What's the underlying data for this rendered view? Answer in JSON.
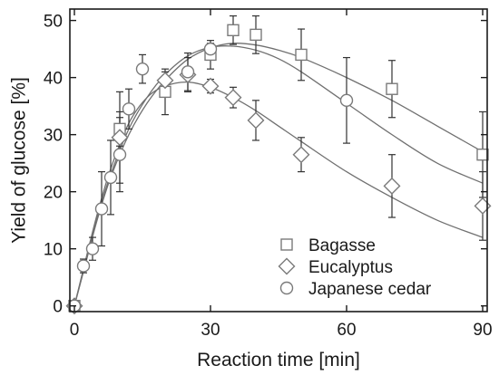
{
  "chart_data": {
    "type": "scatter",
    "title": "",
    "xlabel": "Reaction time [min]",
    "ylabel": "Yield of glucose [%]",
    "xlim": [
      -1,
      91
    ],
    "ylim": [
      -1,
      52
    ],
    "xticks": [
      0,
      30,
      60,
      90
    ],
    "yticks": [
      0,
      10,
      20,
      30,
      40,
      50
    ],
    "grid": false,
    "legend_position": "bottom-center",
    "colors": {
      "marker": "#7a7a7a",
      "fit": "#707070",
      "axis": "#1a1a1a"
    },
    "series": [
      {
        "name": "Bagasse",
        "marker": "square",
        "points": [
          {
            "x": 0,
            "y": 0,
            "err": 0.5
          },
          {
            "x": 10,
            "y": 31,
            "err": 3
          },
          {
            "x": 20,
            "y": 37.5,
            "err": 4
          },
          {
            "x": 30,
            "y": 44,
            "err": 2.5
          },
          {
            "x": 35,
            "y": 48.3,
            "err": 2.5
          },
          {
            "x": 40,
            "y": 47.5,
            "err": 3.3
          },
          {
            "x": 50,
            "y": 44,
            "err": 4.5
          },
          {
            "x": 70,
            "y": 38,
            "err": 5
          },
          {
            "x": 90,
            "y": 26.5,
            "err": 7.5
          }
        ],
        "fit": [
          [
            0,
            0
          ],
          [
            2,
            6
          ],
          [
            5,
            15
          ],
          [
            8,
            22.5
          ],
          [
            12,
            30
          ],
          [
            16,
            35.5
          ],
          [
            20,
            39.5
          ],
          [
            25,
            43.2
          ],
          [
            30,
            45.2
          ],
          [
            35,
            46
          ],
          [
            40,
            45.7
          ],
          [
            45,
            44.8
          ],
          [
            50,
            43.5
          ],
          [
            60,
            40
          ],
          [
            70,
            36
          ],
          [
            80,
            31.5
          ],
          [
            90,
            27
          ]
        ]
      },
      {
        "name": "Eucalyptus",
        "marker": "diamond",
        "points": [
          {
            "x": 0,
            "y": 0,
            "err": 0.5
          },
          {
            "x": 10,
            "y": 29.5,
            "err": 8
          },
          {
            "x": 20,
            "y": 39.5,
            "err": 1.5
          },
          {
            "x": 25,
            "y": 40.5,
            "err": 3
          },
          {
            "x": 30,
            "y": 38.5,
            "err": 1.2
          },
          {
            "x": 35,
            "y": 36.5,
            "err": 1.8
          },
          {
            "x": 40,
            "y": 32.5,
            "err": 3.5
          },
          {
            "x": 50,
            "y": 26.5,
            "err": 3
          },
          {
            "x": 70,
            "y": 21,
            "err": 5.5
          },
          {
            "x": 90,
            "y": 17.5,
            "err": 6
          }
        ],
        "fit": [
          [
            0,
            0
          ],
          [
            2,
            6.5
          ],
          [
            5,
            16
          ],
          [
            8,
            24
          ],
          [
            12,
            32
          ],
          [
            16,
            36.5
          ],
          [
            20,
            38.5
          ],
          [
            25,
            39.2
          ],
          [
            30,
            38.3
          ],
          [
            35,
            36.5
          ],
          [
            40,
            34.2
          ],
          [
            45,
            31.5
          ],
          [
            50,
            28.8
          ],
          [
            60,
            23.5
          ],
          [
            70,
            19
          ],
          [
            80,
            15
          ],
          [
            90,
            12
          ]
        ]
      },
      {
        "name": "Japanese cedar",
        "marker": "circle",
        "points": [
          {
            "x": 0,
            "y": 0,
            "err": 0.5
          },
          {
            "x": 2,
            "y": 7,
            "err": 1.2
          },
          {
            "x": 4,
            "y": 10,
            "err": 2
          },
          {
            "x": 6,
            "y": 17,
            "err": 6.5
          },
          {
            "x": 8,
            "y": 22.5,
            "err": 6.5
          },
          {
            "x": 10,
            "y": 26.5,
            "err": 6.5
          },
          {
            "x": 12,
            "y": 34.5,
            "err": 3.5
          },
          {
            "x": 15,
            "y": 41.5,
            "err": 2.5
          },
          {
            "x": 25,
            "y": 41,
            "err": 3.3
          },
          {
            "x": 30,
            "y": 45,
            "err": 1
          },
          {
            "x": 60,
            "y": 36,
            "err": 7.5
          }
        ],
        "fit": [
          [
            0,
            0
          ],
          [
            2,
            6.2
          ],
          [
            5,
            15.5
          ],
          [
            8,
            23
          ],
          [
            12,
            31
          ],
          [
            16,
            36.5
          ],
          [
            20,
            40.5
          ],
          [
            25,
            43.8
          ],
          [
            30,
            45.3
          ],
          [
            35,
            45.5
          ],
          [
            40,
            44.8
          ],
          [
            45,
            43.3
          ],
          [
            50,
            41
          ],
          [
            60,
            35.5
          ],
          [
            70,
            30
          ],
          [
            80,
            25
          ],
          [
            90,
            21.5
          ]
        ]
      }
    ]
  }
}
